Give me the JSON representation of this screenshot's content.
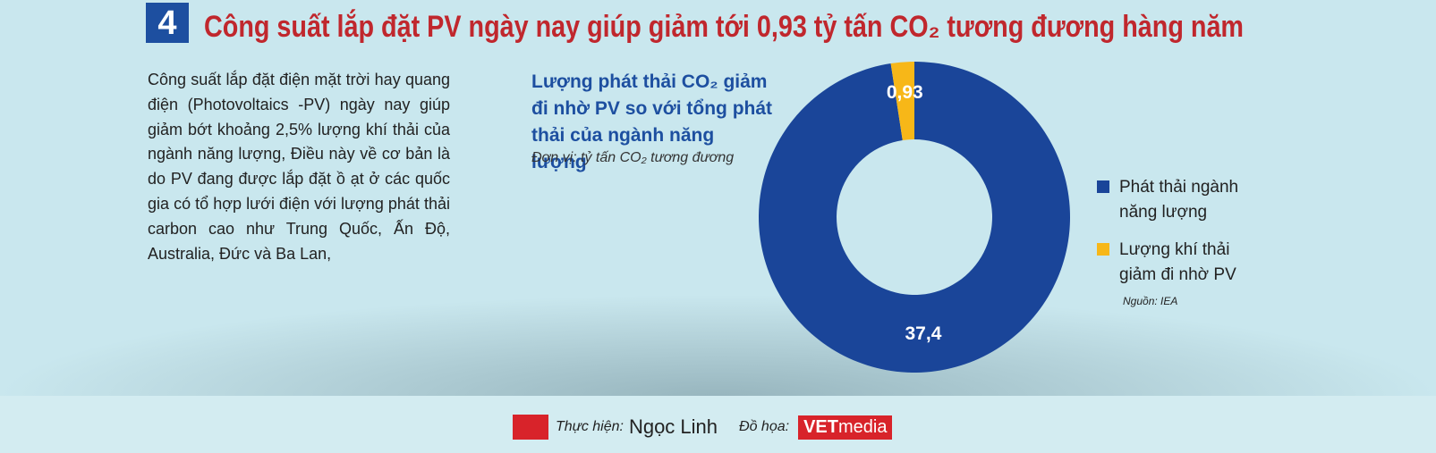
{
  "badge": "4",
  "title": "Công suất lắp đặt PV ngày nay giúp giảm tới 0,93 tỷ tấn CO₂ tương đương hàng năm",
  "paragraph": "Công suất lắp đặt điện mặt trời hay quang điện (Photovoltaics -PV) ngày nay giúp giảm bớt khoảng 2,5% lượng khí thải của ngành năng lượng, Điều này về cơ bản là do PV đang được lắp đặt ồ ạt ở các quốc gia có tổ hợp lưới điện với lượng phát thải carbon cao như Trung Quốc, Ấn Độ, Australia, Đức và Ba Lan,",
  "chart_data": {
    "type": "donut",
    "title": "Lượng phát thải CO₂ giảm đi nhờ PV so với tổng phát thải của ngành năng lượng",
    "subtitle": "Đơn vị: tỷ tấn CO₂ tương đương",
    "categories": [
      "Phát thải ngành năng lượng",
      "Lượng khí thải giảm đi nhờ PV"
    ],
    "values": [
      37.4,
      0.93
    ],
    "value_labels": [
      "37,4",
      "0,93"
    ],
    "colors": [
      "#1a4599",
      "#f7b718"
    ],
    "source": "Nguồn: IEA"
  },
  "footer": {
    "credit_label": "Thực hiện:",
    "author": "Ngọc Linh",
    "design_label": "Đồ họa:",
    "logo_bold": "VET",
    "logo_rest": "media"
  }
}
